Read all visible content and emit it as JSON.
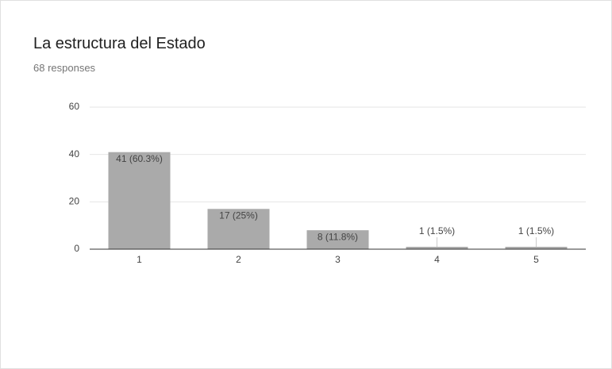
{
  "chart_data": {
    "type": "bar",
    "title": "La estructura del Estado",
    "subtitle": "68 responses",
    "categories": [
      "1",
      "2",
      "3",
      "4",
      "5"
    ],
    "values": [
      41,
      17,
      8,
      1,
      1
    ],
    "value_labels": [
      "41 (60.3%)",
      "17 (25%)",
      "8 (11.8%)",
      "1 (1.5%)",
      "1 (1.5%)"
    ],
    "color": "#aaaaaa",
    "ylim": [
      0,
      60
    ],
    "yticks": [
      0,
      20,
      40,
      60
    ],
    "grid": true
  }
}
